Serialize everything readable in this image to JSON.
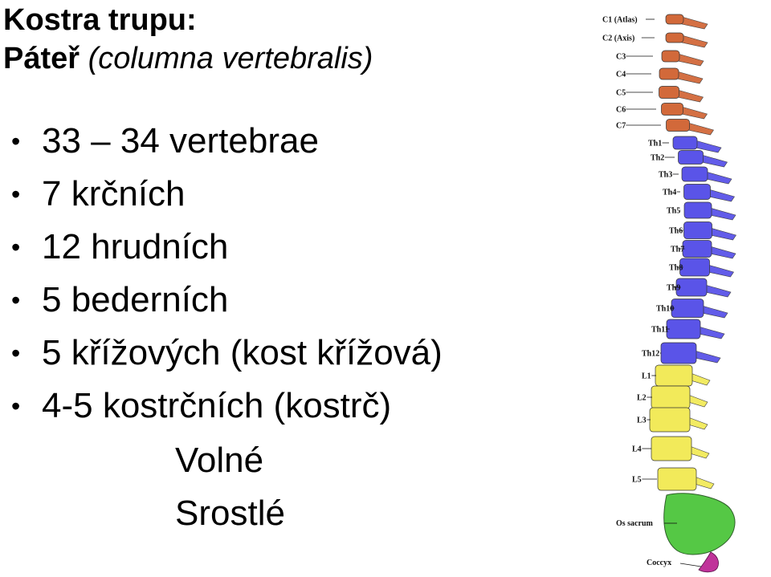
{
  "title": {
    "line1": "Kostra trupu:",
    "line2_bold": "Páteř",
    "line2_italic": "(columna vertebralis)"
  },
  "bullets": [
    "33 – 34 vertebrae",
    "7 krčních",
    "12 hrudních",
    "5 bederních",
    "5 křížových (kost křížová)",
    "4-5 kostrčních (kostrč)"
  ],
  "groups": {
    "free": "Volné",
    "fused": "Srostlé"
  },
  "spine": {
    "colors": {
      "cervical": "#d2693a",
      "thoracic": "#5a54e8",
      "lumbar": "#f2ea5a",
      "sacrum": "#55c845",
      "coccyx": "#c0339a"
    },
    "labels": [
      "C1 (Atlas)",
      "C2 (Axis)",
      "C3",
      "C4",
      "C5",
      "C6",
      "C7",
      "Th1",
      "Th2",
      "Th3",
      "Th4",
      "Th5",
      "Th6",
      "Th7",
      "Th8",
      "Th9",
      "Th10",
      "Th11",
      "Th12",
      "L1",
      "L2",
      "L3",
      "L4",
      "L5",
      "Os sacrum",
      "Coccyx"
    ]
  }
}
